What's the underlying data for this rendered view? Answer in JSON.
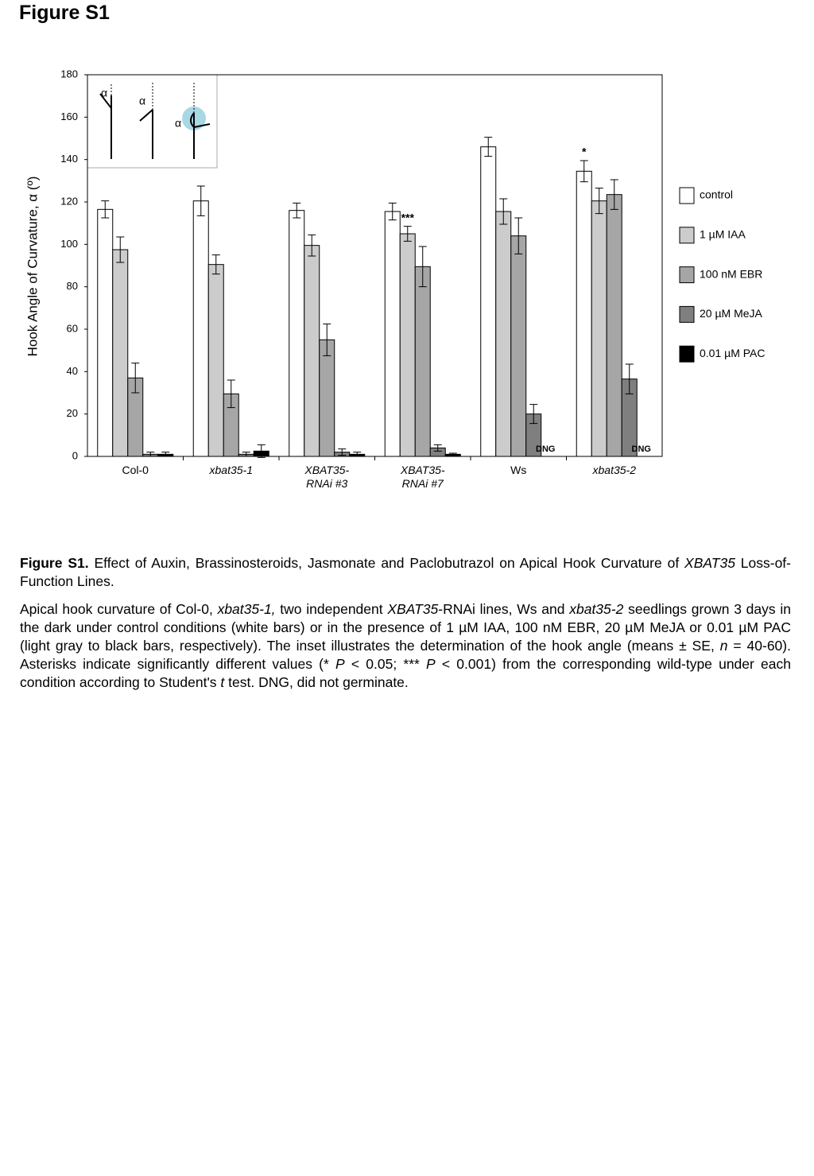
{
  "title": "Figure S1",
  "chart_data": {
    "type": "bar",
    "y_label": "Hook Angle of Curvature, α (º)",
    "categories": [
      "Col-0",
      "xbat35-1",
      "XBAT35-\nRNAi #3",
      "XBAT35-\nRNAi #7",
      "Ws",
      "xbat35-2"
    ],
    "series": [
      {
        "name": "control",
        "color": "#ffffff",
        "values": [
          116.5,
          120.5,
          116,
          115.5,
          146,
          134.5
        ],
        "errors": [
          4,
          7,
          3.5,
          4,
          4.5,
          5
        ],
        "markers": [
          null,
          null,
          null,
          null,
          null,
          "*"
        ]
      },
      {
        "name": "1 µM IAA",
        "color": "#cccccc",
        "values": [
          97.5,
          90.5,
          99.5,
          105,
          115.5,
          120.5
        ],
        "errors": [
          6,
          4.5,
          5,
          3.5,
          6,
          6
        ],
        "markers": [
          null,
          null,
          null,
          "***",
          null,
          null
        ]
      },
      {
        "name": "100 nM EBR",
        "color": "#a6a6a6",
        "values": [
          37,
          29.5,
          55,
          89.5,
          104,
          123.5
        ],
        "errors": [
          7,
          6.5,
          7.5,
          9.5,
          8.5,
          7
        ]
      },
      {
        "name": "20 µM MeJA",
        "color": "#7f7f7f",
        "values": [
          1,
          1,
          2,
          4,
          20,
          36.5
        ],
        "errors": [
          1,
          1,
          1.5,
          1.5,
          4.5,
          7
        ]
      },
      {
        "name": "0.01 µM PAC",
        "color": "#000000",
        "values": [
          1,
          2.5,
          1,
          1,
          null,
          null
        ],
        "errors": [
          1,
          3,
          1,
          0.5,
          null,
          null
        ],
        "value_labels": [
          null,
          null,
          null,
          null,
          "DNG",
          "DNG"
        ]
      }
    ],
    "ylim": [
      0,
      180
    ],
    "yticks": [
      0,
      20,
      40,
      60,
      80,
      100,
      120,
      140,
      160,
      180
    ],
    "grid": false,
    "legend": "right"
  },
  "inset": {
    "labels": [
      "α",
      "α",
      "α"
    ]
  },
  "caption": {
    "paragraphs": [
      {
        "segments": [
          "Figure S1.",
          " Effect of Auxin, Brassinosteroids, Jasmonate and Paclobutrazol on Apical Hook Curvature of ",
          "XBAT35",
          " Loss-of-Function Lines."
        ]
      },
      {
        "segments": [
          "Apical hook curvature of Col-0, ",
          "xbat35-1,",
          " two independent ",
          "XBAT35",
          "-RNAi lines, Ws and ",
          "xbat35-2",
          " seedlings grown 3 days in the dark under control conditions (white bars) or in the presence of 1 µM IAA, 100 nM EBR, 20 µM MeJA or 0.01 µM PAC (light gray to black bars, respectively). The inset illustrates the determination of the hook angle (means ± SE, ",
          "n",
          " = 40-60). Asterisks indicate significantly different values (* ",
          "P",
          " < 0.05; *** ",
          "P",
          " < 0.001) from the corresponding wild-type under each condition according to Student's ",
          "t",
          " test. DNG, did not germinate."
        ]
      }
    ]
  }
}
